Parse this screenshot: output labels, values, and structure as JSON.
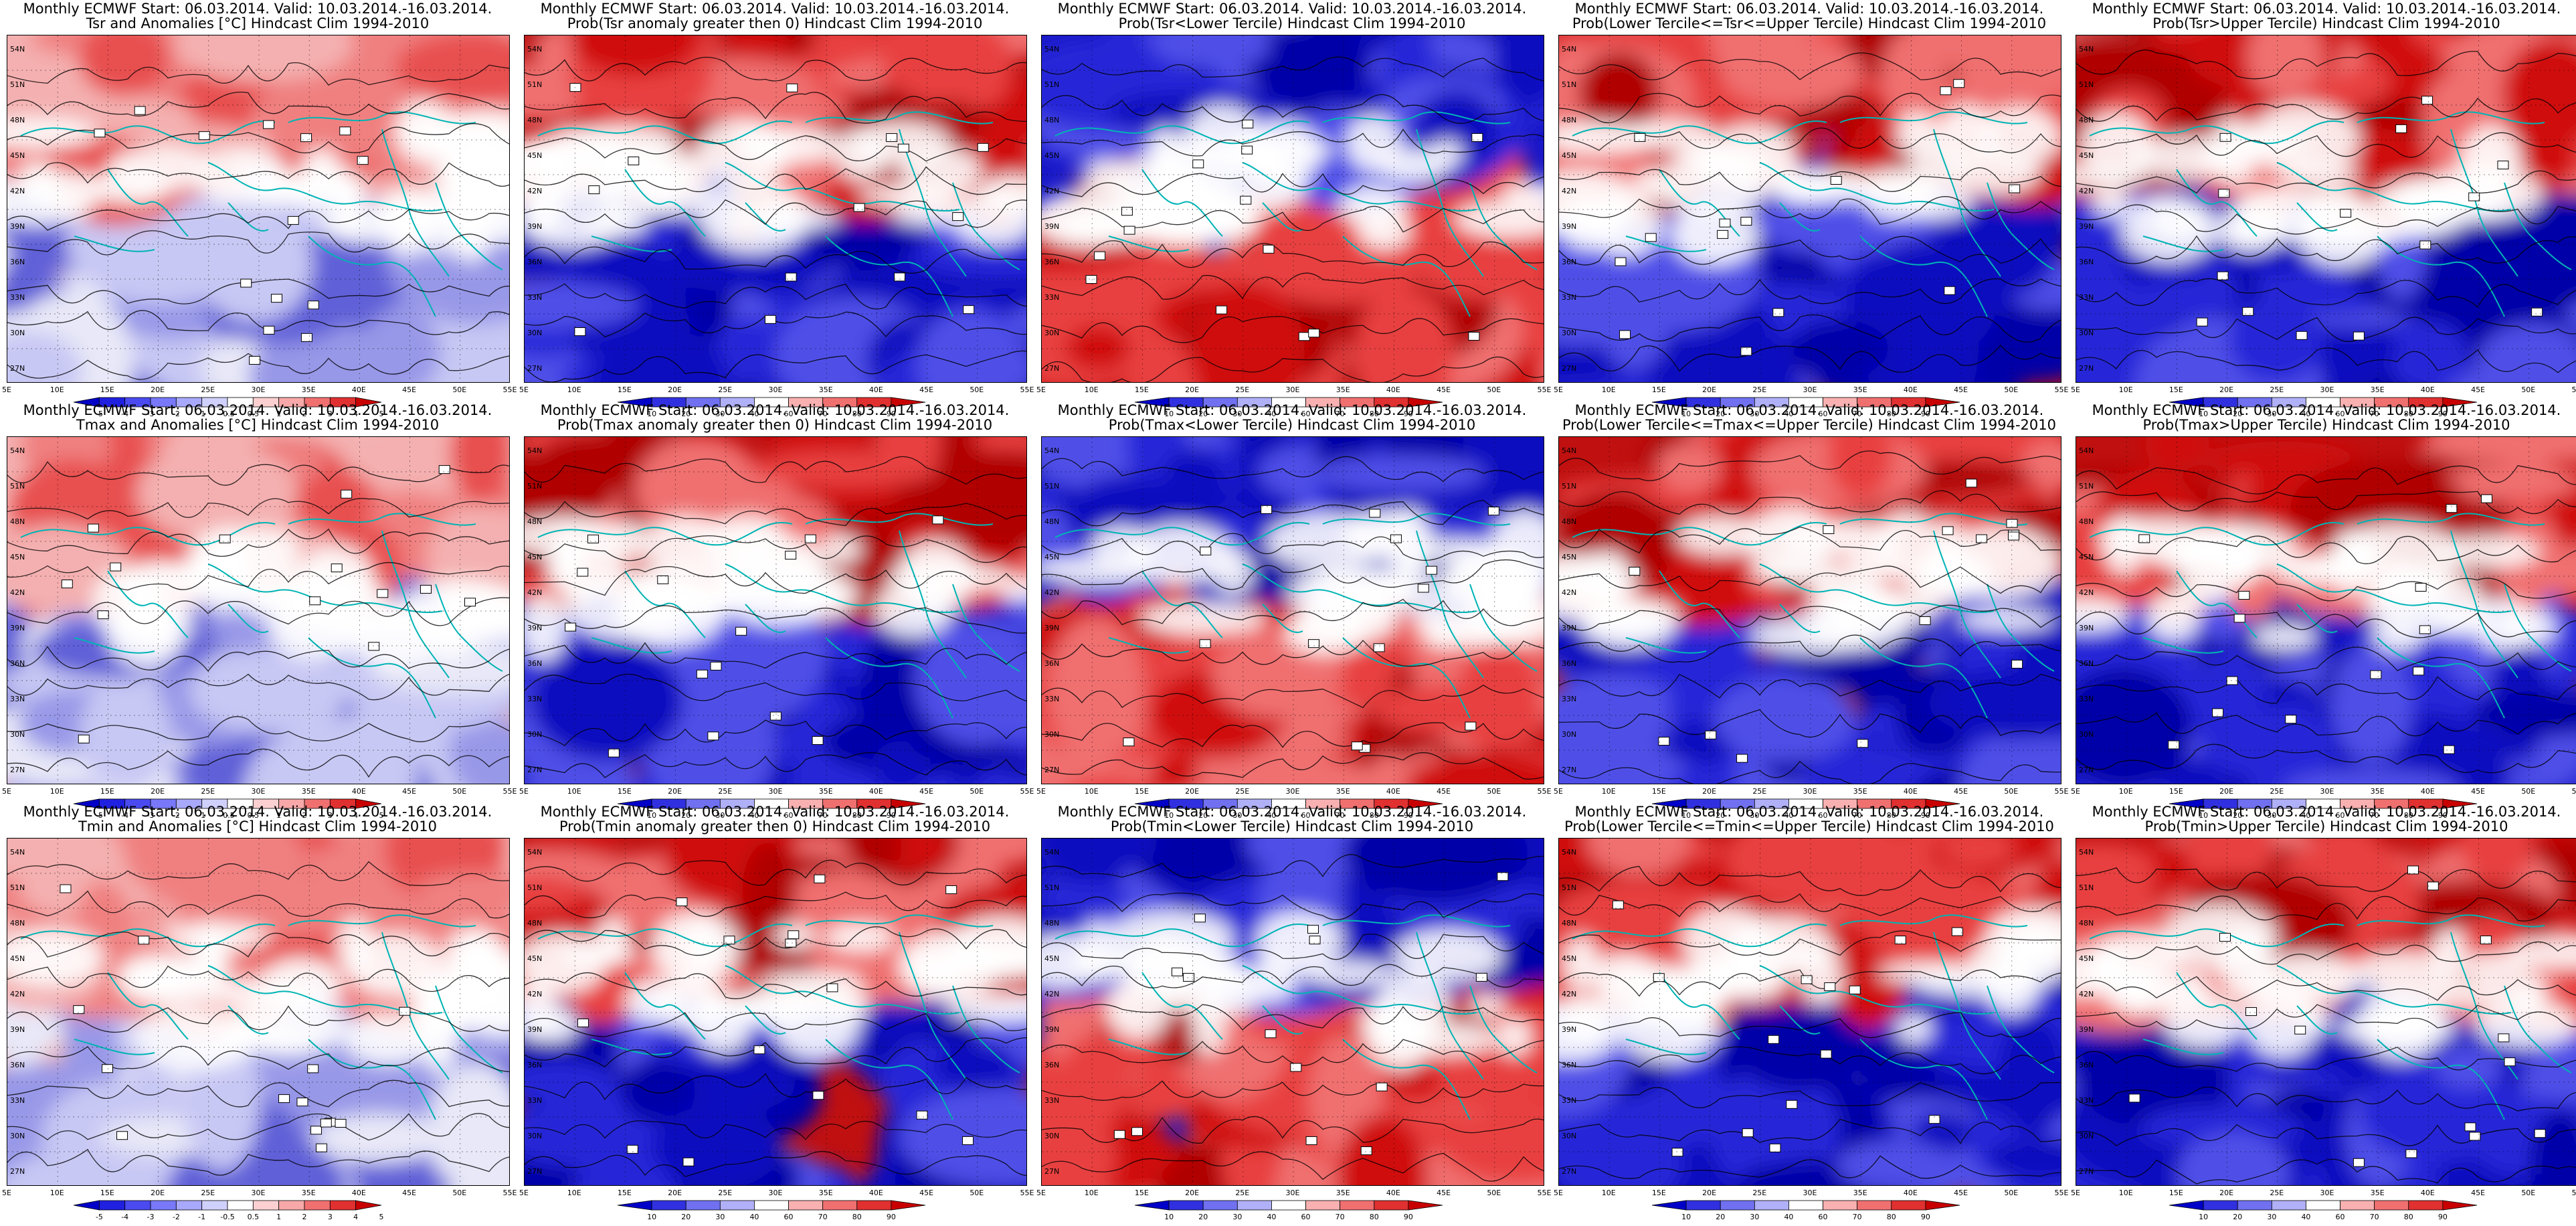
{
  "panels": [
    {
      "line1": "Monthly ECMWF Start: 06.03.2014. Valid: 10.03.2014.-16.03.2014.",
      "line2": "Tsr and Anomalies [°C] Hindcast Clim 1994-2010",
      "kind": "anom",
      "variant": 1
    },
    {
      "line1": "Monthly ECMWF Start: 06.03.2014. Valid: 10.03.2014.-16.03.2014.",
      "line2": "Prob(Tsr anomaly greater then 0) Hindcast Clim 1994-2010",
      "kind": "prob",
      "variant": 2
    },
    {
      "line1": "Monthly ECMWF Start: 06.03.2014. Valid: 10.03.2014.-16.03.2014.",
      "line2": "Prob(Tsr<Lower Tercile) Hindcast Clim 1994-2010",
      "kind": "prob",
      "variant": 3
    },
    {
      "line1": "Monthly ECMWF Start: 06.03.2014. Valid: 10.03.2014.-16.03.2014.",
      "line2": "Prob(Lower Tercile<=Tsr<=Upper Tercile) Hindcast Clim 1994-2010",
      "kind": "prob",
      "variant": 4
    },
    {
      "line1": "Monthly ECMWF Start: 06.03.2014. Valid: 10.03.2014.-16.03.2014.",
      "line2": "Prob(Tsr>Upper Tercile) Hindcast Clim 1994-2010",
      "kind": "prob",
      "variant": 5
    },
    {
      "line1": "Monthly ECMWF Start: 06.03.2014. Valid: 10.03.2014.-16.03.2014.",
      "line2": "Tmax and Anomalies [°C] Hindcast Clim 1994-2010",
      "kind": "anom",
      "variant": 6
    },
    {
      "line1": "Monthly ECMWF Start: 06.03.2014. Valid: 10.03.2014.-16.03.2014.",
      "line2": "Prob(Tmax anomaly greater then 0) Hindcast Clim 1994-2010",
      "kind": "prob",
      "variant": 7
    },
    {
      "line1": "Monthly ECMWF Start: 06.03.2014. Valid: 10.03.2014.-16.03.2014.",
      "line2": "Prob(Tmax<Lower Tercile) Hindcast Clim 1994-2010",
      "kind": "prob",
      "variant": 8
    },
    {
      "line1": "Monthly ECMWF Start: 06.03.2014. Valid: 10.03.2014.-16.03.2014.",
      "line2": "Prob(Lower Tercile<=Tmax<=Upper Tercile) Hindcast Clim 1994-2010",
      "kind": "prob",
      "variant": 9
    },
    {
      "line1": "Monthly ECMWF Start: 06.03.2014. Valid: 10.03.2014.-16.03.2014.",
      "line2": "Prob(Tmax>Upper Tercile) Hindcast Clim 1994-2010",
      "kind": "prob",
      "variant": 10
    },
    {
      "line1": "Monthly ECMWF Start: 06.03.2014. Valid: 10.03.2014.-16.03.2014.",
      "line2": "Tmin and Anomalies [°C] Hindcast Clim 1994-2010",
      "kind": "anom",
      "variant": 11
    },
    {
      "line1": "Monthly ECMWF Start: 06.03.2014. Valid: 10.03.2014.-16.03.2014.",
      "line2": "Prob(Tmin anomaly greater then 0) Hindcast Clim 1994-2010",
      "kind": "prob",
      "variant": 12
    },
    {
      "line1": "Monthly ECMWF Start: 06.03.2014. Valid: 10.03.2014.-16.03.2014.",
      "line2": "Prob(Tmin<Lower Tercile) Hindcast Clim 1994-2010",
      "kind": "prob",
      "variant": 13
    },
    {
      "line1": "Monthly ECMWF Start: 06.03.2014. Valid: 10.03.2014.-16.03.2014.",
      "line2": "Prob(Lower Tercile<=Tmin<=Upper Tercile) Hindcast Clim 1994-2010",
      "kind": "prob",
      "variant": 14
    },
    {
      "line1": "Monthly ECMWF Start: 06.03.2014. Valid: 10.03.2014.-16.03.2014.",
      "line2": "Prob(Tmin>Upper Tercile) Hindcast Clim 1994-2010",
      "kind": "prob",
      "variant": 15
    }
  ],
  "lat_labels": [
    "54N",
    "51N",
    "48N",
    "45N",
    "42N",
    "39N",
    "36N",
    "33N",
    "30N",
    "27N"
  ],
  "lon_labels": [
    "5E",
    "10E",
    "15E",
    "20E",
    "25E",
    "30E",
    "35E",
    "40E",
    "45E",
    "50E",
    "55E"
  ],
  "legends": {
    "anom": {
      "labels": [
        "-5",
        "-4",
        "-3",
        "-2",
        "-1",
        "-0.5",
        "0.5",
        "1",
        "2",
        "3",
        "4",
        "5"
      ],
      "colors": [
        "#0000c8",
        "#2020e0",
        "#4a4af0",
        "#7878f8",
        "#a8a8fc",
        "#d0d0fc",
        "#ffffff",
        "#fcd0d0",
        "#f8a8a8",
        "#f07070",
        "#e03030",
        "#c80000"
      ]
    },
    "prob": {
      "labels": [
        "10",
        "20",
        "30",
        "40",
        "60",
        "70",
        "80",
        "90"
      ],
      "colors": [
        "#0000c8",
        "#3030e0",
        "#7070f0",
        "#b0b0f8",
        "#ffffff",
        "#f8b0b0",
        "#f07070",
        "#e03030",
        "#c80000"
      ]
    }
  },
  "colors": {
    "coast": "#00b4b4",
    "contour": "#000000",
    "warm": "#e02020",
    "cold": "#1818d0"
  }
}
